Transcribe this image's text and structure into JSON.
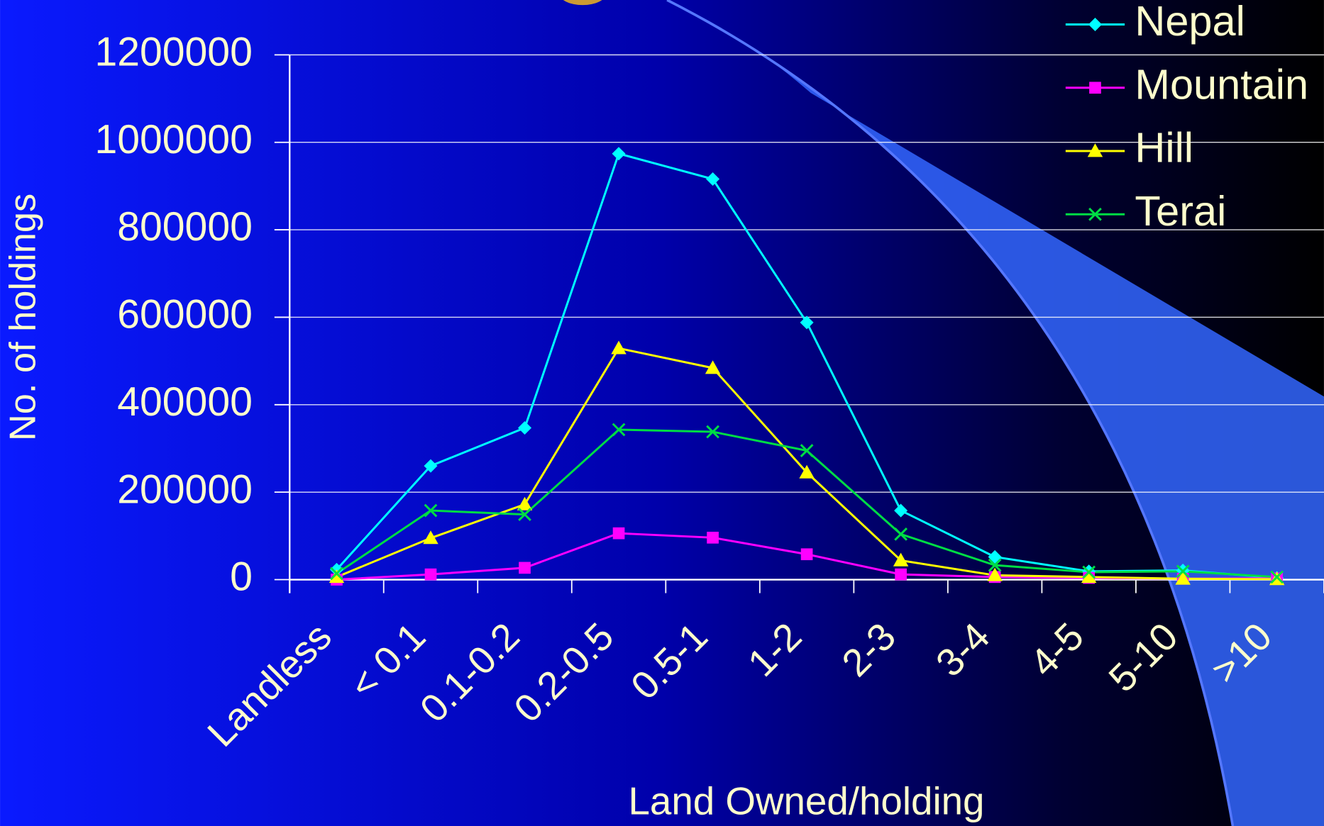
{
  "chart_data": {
    "type": "line",
    "y_label": "No. of holdings",
    "x_label": "Land Owned/holding",
    "categories": [
      "Landless",
      "< 0.1",
      "0.1-0.2",
      "0.2-0.5",
      "0.5-1",
      "1-2",
      "2-3",
      "3-4",
      "4-5",
      "5-10",
      ">10"
    ],
    "series": [
      {
        "name": "Nepal",
        "color": "#00ffff",
        "marker": "diamond",
        "values": [
          23000,
          260000,
          347000,
          974000,
          916000,
          588000,
          158000,
          52000,
          19000,
          21000,
          4000
        ]
      },
      {
        "name": "Mountain",
        "color": "#ff00ff",
        "marker": "square",
        "values": [
          0,
          12000,
          27000,
          106000,
          96000,
          58000,
          12000,
          6000,
          4000,
          2000,
          3000
        ]
      },
      {
        "name": "Hill",
        "color": "#ffff00",
        "marker": "triangle",
        "values": [
          6000,
          95000,
          172000,
          529000,
          484000,
          245000,
          44000,
          10000,
          6000,
          2000,
          1000
        ]
      },
      {
        "name": "Terai",
        "color": "#00dd44",
        "marker": "x",
        "values": [
          14000,
          158000,
          149000,
          343000,
          338000,
          295000,
          104000,
          33000,
          17000,
          19000,
          6000
        ]
      }
    ],
    "ylim": [
      0,
      1200000
    ],
    "yticks": [
      0,
      200000,
      400000,
      600000,
      800000,
      1000000,
      1200000
    ],
    "grid": true,
    "legend": "top-right"
  }
}
